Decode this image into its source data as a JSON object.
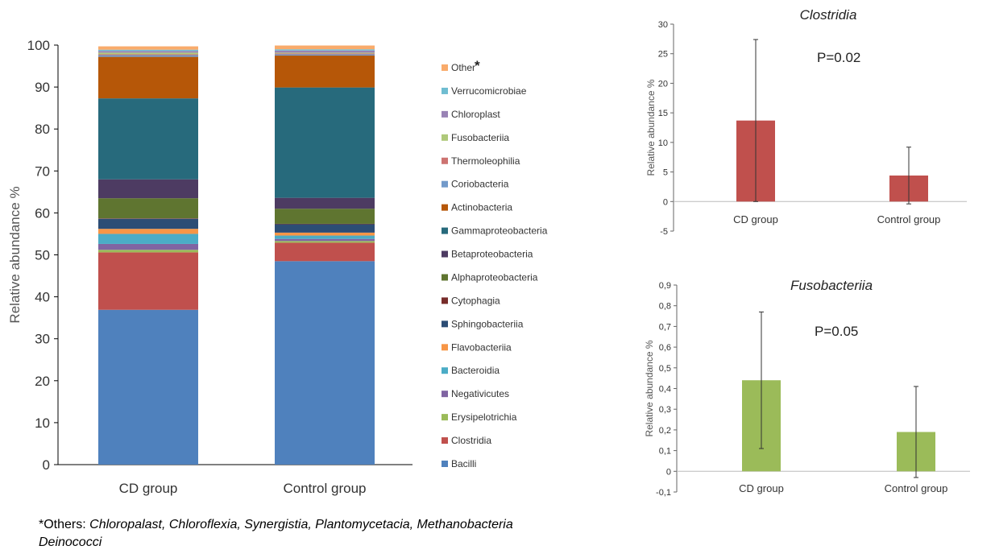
{
  "chart_data": [
    {
      "type": "bar",
      "stacked": true,
      "ylabel": "Relative abundance %",
      "ylim": [
        0,
        100
      ],
      "yticks": [
        "0",
        "10",
        "20",
        "30",
        "40",
        "50",
        "60",
        "70",
        "80",
        "90",
        "100"
      ],
      "categories": [
        "CD group",
        "Control group"
      ],
      "legend_position": "right",
      "series": [
        {
          "name": "Bacilli",
          "color": "#4f81bd",
          "values": [
            36.9,
            48.5
          ]
        },
        {
          "name": "Clostridia",
          "color": "#c0504d",
          "values": [
            13.7,
            4.4
          ]
        },
        {
          "name": "Erysipelotrichia",
          "color": "#9bbb59",
          "values": [
            0.6,
            0.4
          ]
        },
        {
          "name": "Negativicutes",
          "color": "#8064a2",
          "values": [
            1.4,
            0.5
          ]
        },
        {
          "name": "Bacteroidia",
          "color": "#4bacc6",
          "values": [
            2.4,
            0.8
          ]
        },
        {
          "name": "Flavobacteriia",
          "color": "#f79646",
          "values": [
            1.2,
            0.7
          ]
        },
        {
          "name": "Sphingobacteriia",
          "color": "#2c4d75",
          "values": [
            2.4,
            2.0
          ]
        },
        {
          "name": "Cytophagia",
          "color": "#772c2a",
          "values": [
            0.1,
            0.1
          ]
        },
        {
          "name": "Alphaproteobacteria",
          "color": "#5f7530",
          "values": [
            4.8,
            3.6
          ]
        },
        {
          "name": "Betaproteobacteria",
          "color": "#4d3b62",
          "values": [
            4.5,
            2.6
          ]
        },
        {
          "name": "Gammaproteobacteria",
          "color": "#276a7c",
          "values": [
            19.3,
            26.3
          ]
        },
        {
          "name": "Actinobacteria",
          "color": "#b65708",
          "values": [
            9.9,
            7.6
          ]
        },
        {
          "name": "Coriobacteria",
          "color": "#729aca",
          "values": [
            0.4,
            0.3
          ]
        },
        {
          "name": "Thermoleophilia",
          "color": "#cd7371",
          "values": [
            0.2,
            0.2
          ]
        },
        {
          "name": "Fusobacteriia",
          "color": "#afc97a",
          "values": [
            0.4,
            0.2
          ]
        },
        {
          "name": "Chloroplast",
          "color": "#9983b5",
          "values": [
            0.4,
            0.5
          ]
        },
        {
          "name": "Verrucomicrobiae",
          "color": "#6fbdd1",
          "values": [
            0.3,
            0.3
          ]
        },
        {
          "name": "Other",
          "color": "#f9ab6b",
          "values": [
            0.8,
            0.9
          ]
        }
      ],
      "legend_star": "*"
    },
    {
      "type": "bar",
      "title": "Clostridia",
      "annotation": "P=0.02",
      "ylabel": "Relative abundance %",
      "ylim": [
        -5,
        30
      ],
      "yticks": [
        "-5",
        "0",
        "5",
        "10",
        "15",
        "20",
        "25",
        "30"
      ],
      "categories": [
        "CD group",
        "Control group"
      ],
      "color": "#c0504d",
      "values": [
        13.7,
        4.4
      ],
      "error": [
        13.7,
        4.8
      ]
    },
    {
      "type": "bar",
      "title": "Fusobacteriia",
      "annotation": "P=0.05",
      "ylabel": "Relative abundance %",
      "ylim": [
        -0.1,
        0.9
      ],
      "yticks": [
        "-0,1",
        "0",
        "0,1",
        "0,2",
        "0,3",
        "0,4",
        "0,5",
        "0,6",
        "0,7",
        "0,8",
        "0,9"
      ],
      "categories": [
        "CD group",
        "Control group"
      ],
      "color": "#9bbb59",
      "values": [
        0.44,
        0.19
      ],
      "error": [
        0.33,
        0.22
      ]
    }
  ],
  "footnote": {
    "star": "*",
    "prefix": "Others: ",
    "line1": "Chloropalast, Chloroflexia, Synergistia, Plantomycetacia, Methanobacteria",
    "line2": "Deinococci"
  }
}
